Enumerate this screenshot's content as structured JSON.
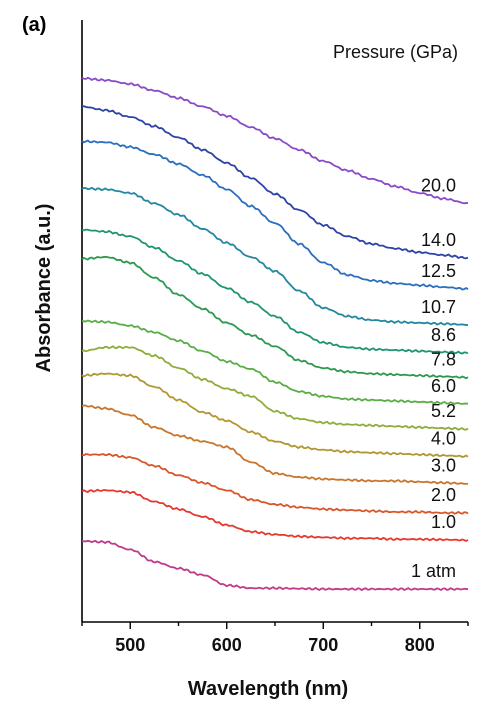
{
  "panel_label": "(a)",
  "chart_data": {
    "type": "line",
    "title": "",
    "xlabel": "Wavelength (nm)",
    "ylabel": "Absorbance (a.u.)",
    "legend_title": "Pressure (GPa)",
    "xlim": [
      450,
      850
    ],
    "x_ticks": [
      "500",
      "600",
      "700",
      "800"
    ],
    "y_ticks": [],
    "grid": false,
    "offset_stacked": true,
    "x": [
      450,
      475,
      500,
      525,
      550,
      575,
      600,
      625,
      650,
      675,
      700,
      725,
      750,
      775,
      800,
      825,
      850
    ],
    "series": [
      {
        "name": "1 atm",
        "color": "#c03a8c",
        "values": [
          0.86,
          0.85,
          0.77,
          0.64,
          0.57,
          0.5,
          0.39,
          0.36,
          0.36,
          0.355,
          0.35,
          0.35,
          0.35,
          0.35,
          0.35,
          0.35,
          0.35
        ]
      },
      {
        "name": "1.0",
        "color": "#e5392f",
        "values": [
          1.39,
          1.4,
          1.38,
          1.28,
          1.2,
          1.12,
          1.03,
          0.96,
          0.93,
          0.91,
          0.9,
          0.89,
          0.89,
          0.88,
          0.88,
          0.875,
          0.87
        ]
      },
      {
        "name": "2.0",
        "color": "#d8562a",
        "values": [
          1.78,
          1.78,
          1.75,
          1.66,
          1.56,
          1.48,
          1.4,
          1.3,
          1.25,
          1.22,
          1.2,
          1.19,
          1.18,
          1.17,
          1.17,
          1.16,
          1.16
        ]
      },
      {
        "name": "3.0",
        "color": "#c8762c",
        "values": [
          2.3,
          2.27,
          2.2,
          2.07,
          1.98,
          1.92,
          1.86,
          1.7,
          1.58,
          1.54,
          1.52,
          1.51,
          1.5,
          1.5,
          1.49,
          1.48,
          1.47
        ]
      },
      {
        "name": "4.0",
        "color": "#b2962e",
        "values": [
          2.62,
          2.64,
          2.62,
          2.5,
          2.36,
          2.23,
          2.14,
          2.02,
          1.92,
          1.86,
          1.83,
          1.81,
          1.8,
          1.79,
          1.78,
          1.77,
          1.76
        ]
      },
      {
        "name": "5.2",
        "color": "#90ac3a",
        "values": [
          2.88,
          2.92,
          2.92,
          2.83,
          2.7,
          2.58,
          2.48,
          2.4,
          2.24,
          2.16,
          2.12,
          2.1,
          2.09,
          2.08,
          2.07,
          2.06,
          2.05
        ]
      },
      {
        "name": "6.0",
        "color": "#5aad46",
        "values": [
          3.2,
          3.19,
          3.15,
          3.08,
          2.99,
          2.88,
          2.77,
          2.69,
          2.55,
          2.45,
          2.4,
          2.37,
          2.36,
          2.35,
          2.34,
          2.33,
          2.32
        ]
      },
      {
        "name": "7.8",
        "color": "#2c9a4e",
        "values": [
          3.86,
          3.88,
          3.82,
          3.66,
          3.48,
          3.33,
          3.18,
          3.05,
          2.93,
          2.78,
          2.7,
          2.66,
          2.64,
          2.63,
          2.62,
          2.61,
          2.6
        ]
      },
      {
        "name": "8.6",
        "color": "#1f9474",
        "values": [
          4.17,
          4.15,
          4.1,
          3.98,
          3.84,
          3.7,
          3.55,
          3.4,
          3.25,
          3.08,
          2.97,
          2.92,
          2.9,
          2.89,
          2.88,
          2.87,
          2.86
        ]
      },
      {
        "name": "10.7",
        "color": "#2287a0",
        "values": [
          4.61,
          4.6,
          4.56,
          4.45,
          4.33,
          4.18,
          4.03,
          3.88,
          3.73,
          3.52,
          3.34,
          3.25,
          3.21,
          3.19,
          3.18,
          3.17,
          3.16
        ]
      },
      {
        "name": "12.5",
        "color": "#2a6fbe",
        "values": [
          5.11,
          5.1,
          5.05,
          4.97,
          4.87,
          4.75,
          4.6,
          4.42,
          4.24,
          4.02,
          3.82,
          3.69,
          3.63,
          3.6,
          3.58,
          3.56,
          3.54
        ]
      },
      {
        "name": "14.0",
        "color": "#2c43a6",
        "values": [
          5.48,
          5.44,
          5.37,
          5.27,
          5.15,
          5.02,
          4.88,
          4.72,
          4.55,
          4.38,
          4.22,
          4.1,
          4.02,
          3.97,
          3.93,
          3.9,
          3.87
        ]
      },
      {
        "name": "20.0",
        "color": "#8a4ac8",
        "values": [
          5.78,
          5.76,
          5.72,
          5.65,
          5.57,
          5.48,
          5.38,
          5.26,
          5.14,
          5.02,
          4.9,
          4.8,
          4.71,
          4.63,
          4.56,
          4.5,
          4.45
        ]
      }
    ]
  }
}
